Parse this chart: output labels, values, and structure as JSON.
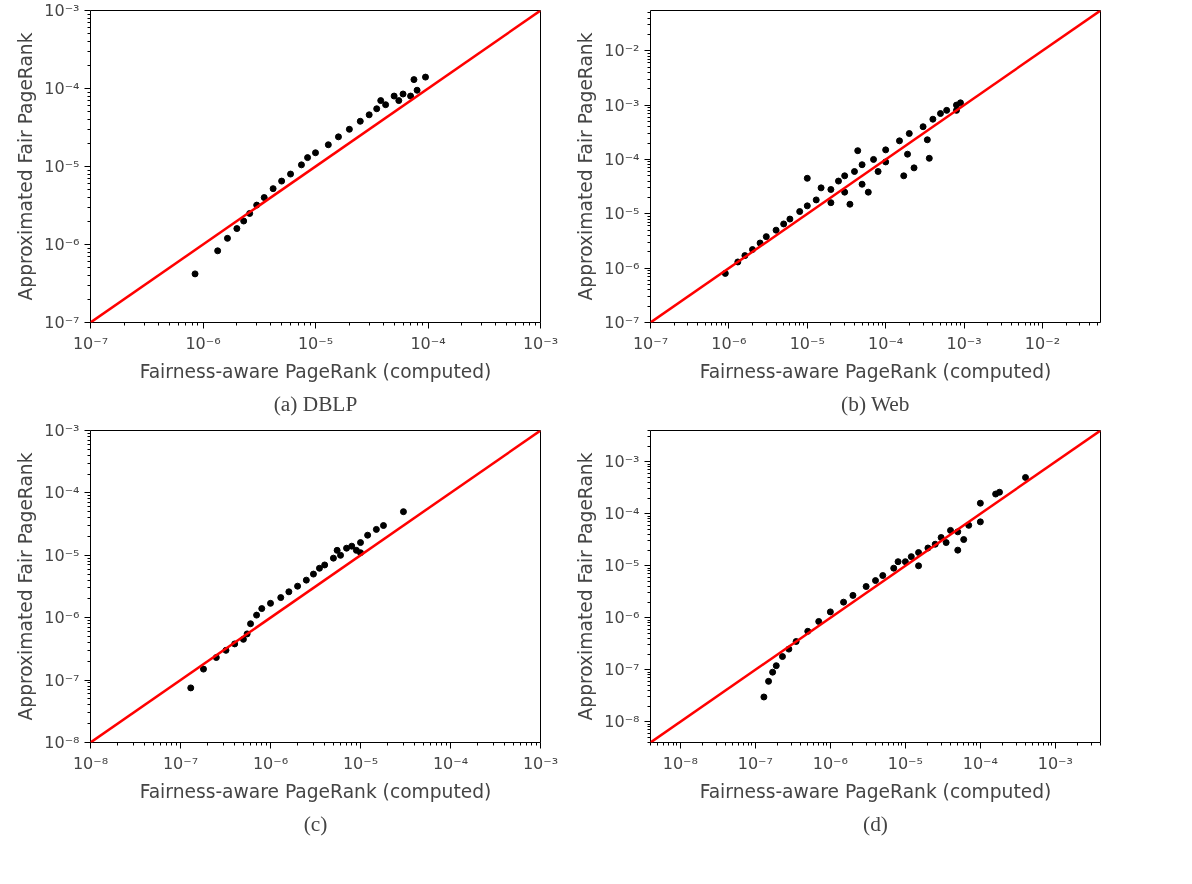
{
  "chart_data": [
    {
      "type": "scatter",
      "title": "(a) DBLP",
      "xlabel": "Fairness-aware PageRank (computed)",
      "ylabel": "Approximated Fair PageRank",
      "log": "xy",
      "grid": false,
      "marker": "circle",
      "xlim": [
        1e-07,
        0.001
      ],
      "ylim": [
        1e-07,
        0.001
      ],
      "xticks": [
        {
          "value": 1e-07,
          "label": "10⁻⁷"
        },
        {
          "value": 1e-06,
          "label": "10⁻⁶"
        },
        {
          "value": 1e-05,
          "label": "10⁻⁵"
        },
        {
          "value": 0.0001,
          "label": "10⁻⁴"
        },
        {
          "value": 0.001,
          "label": "10⁻³"
        }
      ],
      "yticks": [
        {
          "value": 1e-07,
          "label": "10⁻⁷"
        },
        {
          "value": 1e-06,
          "label": "10⁻⁶"
        },
        {
          "value": 1e-05,
          "label": "10⁻⁵"
        },
        {
          "value": 0.0001,
          "label": "10⁻⁴"
        },
        {
          "value": 0.001,
          "label": "10⁻³"
        }
      ],
      "series": [
        {
          "color": "#000000",
          "x": [
            8.5e-07,
            1.35e-06,
            1.65e-06,
            2e-06,
            2.3e-06,
            2.6e-06,
            3e-06,
            3.5e-06,
            4.2e-06,
            5e-06,
            6e-06,
            7.5e-06,
            8.5e-06,
            1e-05,
            1.3e-05,
            1.6e-05,
            2e-05,
            2.5e-05,
            3e-05,
            3.5e-05,
            3.8e-05,
            4.2e-05,
            5e-05,
            5.5e-05,
            6e-05,
            7e-05,
            7.5e-05,
            8e-05,
            9.5e-05
          ],
          "values": [
            4.2e-07,
            8.3e-07,
            1.2e-06,
            1.6e-06,
            2e-06,
            2.5e-06,
            3.2e-06,
            4e-06,
            5.2e-06,
            6.5e-06,
            8e-06,
            1.05e-05,
            1.3e-05,
            1.5e-05,
            1.9e-05,
            2.4e-05,
            3e-05,
            3.8e-05,
            4.6e-05,
            5.5e-05,
            7e-05,
            6.2e-05,
            8e-05,
            7e-05,
            8.5e-05,
            8e-05,
            0.00013,
            9.5e-05,
            0.00014
          ]
        },
        {
          "type": "line",
          "marker": "none",
          "color": "#ff0000",
          "x": [
            1e-07,
            0.001
          ],
          "values": [
            1e-07,
            0.001
          ]
        }
      ]
    },
    {
      "type": "scatter",
      "title": "(b) Web",
      "xlabel": "Fairness-aware PageRank (computed)",
      "ylabel": "Approximated Fair PageRank",
      "log": "xy",
      "grid": false,
      "marker": "circle",
      "xlim": [
        1e-07,
        0.055
      ],
      "ylim": [
        1e-07,
        0.055
      ],
      "xticks": [
        {
          "value": 1e-07,
          "label": "10⁻⁷"
        },
        {
          "value": 1e-06,
          "label": "10⁻⁶"
        },
        {
          "value": 1e-05,
          "label": "10⁻⁵"
        },
        {
          "value": 0.0001,
          "label": "10⁻⁴"
        },
        {
          "value": 0.001,
          "label": "10⁻³"
        },
        {
          "value": 0.01,
          "label": "10⁻²"
        }
      ],
      "yticks": [
        {
          "value": 1e-07,
          "label": "10⁻⁷"
        },
        {
          "value": 1e-06,
          "label": "10⁻⁶"
        },
        {
          "value": 1e-05,
          "label": "10⁻⁵"
        },
        {
          "value": 0.0001,
          "label": "10⁻⁴"
        },
        {
          "value": 0.001,
          "label": "10⁻³"
        },
        {
          "value": 0.01,
          "label": "10⁻²"
        }
      ],
      "series": [
        {
          "color": "#000000",
          "x": [
            9e-07,
            1.3e-06,
            1.6e-06,
            2e-06,
            2.5e-06,
            3e-06,
            4e-06,
            5e-06,
            6e-06,
            8e-06,
            1e-05,
            1e-05,
            1.3e-05,
            1.5e-05,
            2e-05,
            2e-05,
            2.5e-05,
            3e-05,
            3e-05,
            3.5e-05,
            4.4e-05,
            4e-05,
            5e-05,
            5e-05,
            6e-05,
            7e-05,
            8e-05,
            0.0001,
            0.0001,
            0.00015,
            0.00017,
            0.00023,
            0.00036,
            0.00019,
            0.00034,
            0.0002,
            0.0003,
            0.0004,
            0.0005,
            0.0006,
            0.0008,
            0.0009,
            0.0008
          ],
          "values": [
            8e-07,
            1.3e-06,
            1.7e-06,
            2.2e-06,
            2.9e-06,
            3.8e-06,
            5e-06,
            6.5e-06,
            8e-06,
            1.1e-05,
            1.4e-05,
            4.5e-05,
            1.8e-05,
            3e-05,
            2.8e-05,
            1.6e-05,
            4e-05,
            5e-05,
            2.5e-05,
            1.5e-05,
            0.000145,
            6e-05,
            8e-05,
            3.5e-05,
            2.5e-05,
            0.0001,
            6e-05,
            0.00015,
            9e-05,
            0.00022,
            5e-05,
            7e-05,
            0.000105,
            0.000125,
            0.00023,
            0.0003,
            0.0004,
            0.00055,
            0.0007,
            0.0008,
            0.001,
            0.0011,
            0.0008
          ]
        },
        {
          "type": "line",
          "marker": "none",
          "color": "#ff0000",
          "x": [
            1e-07,
            0.055
          ],
          "values": [
            1e-07,
            0.055
          ]
        }
      ]
    },
    {
      "type": "scatter",
      "title": "(c)",
      "xlabel": "Fairness-aware PageRank (computed)",
      "ylabel": "Approximated Fair PageRank",
      "log": "xy",
      "grid": false,
      "marker": "circle",
      "xlim": [
        1e-08,
        0.001
      ],
      "ylim": [
        1e-08,
        0.001
      ],
      "xticks": [
        {
          "value": 1e-08,
          "label": "10⁻⁸"
        },
        {
          "value": 1e-07,
          "label": "10⁻⁷"
        },
        {
          "value": 1e-06,
          "label": "10⁻⁶"
        },
        {
          "value": 1e-05,
          "label": "10⁻⁵"
        },
        {
          "value": 0.0001,
          "label": "10⁻⁴"
        },
        {
          "value": 0.001,
          "label": "10⁻³"
        }
      ],
      "yticks": [
        {
          "value": 1e-08,
          "label": "10⁻⁸"
        },
        {
          "value": 1e-07,
          "label": "10⁻⁷"
        },
        {
          "value": 1e-06,
          "label": "10⁻⁶"
        },
        {
          "value": 1e-05,
          "label": "10⁻⁵"
        },
        {
          "value": 0.0001,
          "label": "10⁻⁴"
        },
        {
          "value": 0.001,
          "label": "10⁻³"
        }
      ],
      "series": [
        {
          "color": "#000000",
          "x": [
            1.3e-07,
            1.8e-07,
            2.5e-07,
            3.2e-07,
            4e-07,
            5e-07,
            5.5e-07,
            6e-07,
            7e-07,
            8e-07,
            1e-06,
            1.3e-06,
            1.6e-06,
            2e-06,
            2.5e-06,
            3e-06,
            3.5e-06,
            4e-06,
            5e-06,
            5.5e-06,
            6e-06,
            7e-06,
            8e-06,
            9e-06,
            1e-05,
            1e-05,
            1.2e-05,
            1.5e-05,
            1.8e-05,
            3e-05
          ],
          "values": [
            7.5e-08,
            1.5e-07,
            2.3e-07,
            3e-07,
            3.8e-07,
            4.5e-07,
            5.5e-07,
            8e-07,
            1.1e-06,
            1.4e-06,
            1.7e-06,
            2.1e-06,
            2.6e-06,
            3.2e-06,
            4e-06,
            5e-06,
            6.2e-06,
            7e-06,
            9e-06,
            1.2e-05,
            1e-05,
            1.3e-05,
            1.4e-05,
            1.2e-05,
            1.6e-05,
            1.1e-05,
            2.1e-05,
            2.6e-05,
            3e-05,
            5e-05
          ]
        },
        {
          "type": "line",
          "marker": "none",
          "color": "#ff0000",
          "x": [
            1e-08,
            0.001
          ],
          "values": [
            1e-08,
            0.001
          ]
        }
      ]
    },
    {
      "type": "scatter",
      "title": "(d)",
      "xlabel": "Fairness-aware PageRank (computed)",
      "ylabel": "Approximated Fair PageRank",
      "log": "xy",
      "grid": false,
      "marker": "circle",
      "xlim": [
        4e-09,
        0.004
      ],
      "ylim": [
        4e-09,
        0.004
      ],
      "xticks": [
        {
          "value": 1e-08,
          "label": "10⁻⁸"
        },
        {
          "value": 1e-07,
          "label": "10⁻⁷"
        },
        {
          "value": 1e-06,
          "label": "10⁻⁶"
        },
        {
          "value": 1e-05,
          "label": "10⁻⁵"
        },
        {
          "value": 0.0001,
          "label": "10⁻⁴"
        },
        {
          "value": 0.001,
          "label": "10⁻³"
        }
      ],
      "yticks": [
        {
          "value": 1e-08,
          "label": "10⁻⁸"
        },
        {
          "value": 1e-07,
          "label": "10⁻⁷"
        },
        {
          "value": 1e-06,
          "label": "10⁻⁶"
        },
        {
          "value": 1e-05,
          "label": "10⁻⁵"
        },
        {
          "value": 0.0001,
          "label": "10⁻⁴"
        },
        {
          "value": 0.001,
          "label": "10⁻³"
        }
      ],
      "series": [
        {
          "color": "#000000",
          "x": [
            1.3e-07,
            1.5e-07,
            1.7e-07,
            1.9e-07,
            2.3e-07,
            2.8e-07,
            3.5e-07,
            5e-07,
            7e-07,
            1e-06,
            1.5e-06,
            2e-06,
            3e-06,
            4e-06,
            5e-06,
            7e-06,
            8e-06,
            1e-05,
            1.2e-05,
            1.5e-05,
            1.5e-05,
            2e-05,
            2.5e-05,
            3e-05,
            3.5e-05,
            4e-05,
            5e-05,
            5e-05,
            6e-05,
            7e-05,
            0.0001,
            0.0001,
            0.00016,
            0.00018,
            0.0004
          ],
          "values": [
            3e-08,
            6e-08,
            9e-08,
            1.2e-07,
            1.8e-07,
            2.5e-07,
            3.5e-07,
            5.5e-07,
            8.5e-07,
            1.3e-06,
            2e-06,
            2.7e-06,
            4e-06,
            5.2e-06,
            6.5e-06,
            9e-06,
            1.2e-05,
            1.2e-05,
            1.5e-05,
            1.8e-05,
            1e-05,
            2.2e-05,
            2.6e-05,
            3.5e-05,
            2.8e-05,
            4.8e-05,
            4.5e-05,
            2e-05,
            3.2e-05,
            6e-05,
            7e-05,
            0.00016,
            0.00024,
            0.00026,
            0.0005
          ]
        },
        {
          "type": "line",
          "marker": "none",
          "color": "#ff0000",
          "x": [
            4e-09,
            0.004
          ],
          "values": [
            4e-09,
            0.004
          ]
        }
      ]
    }
  ]
}
